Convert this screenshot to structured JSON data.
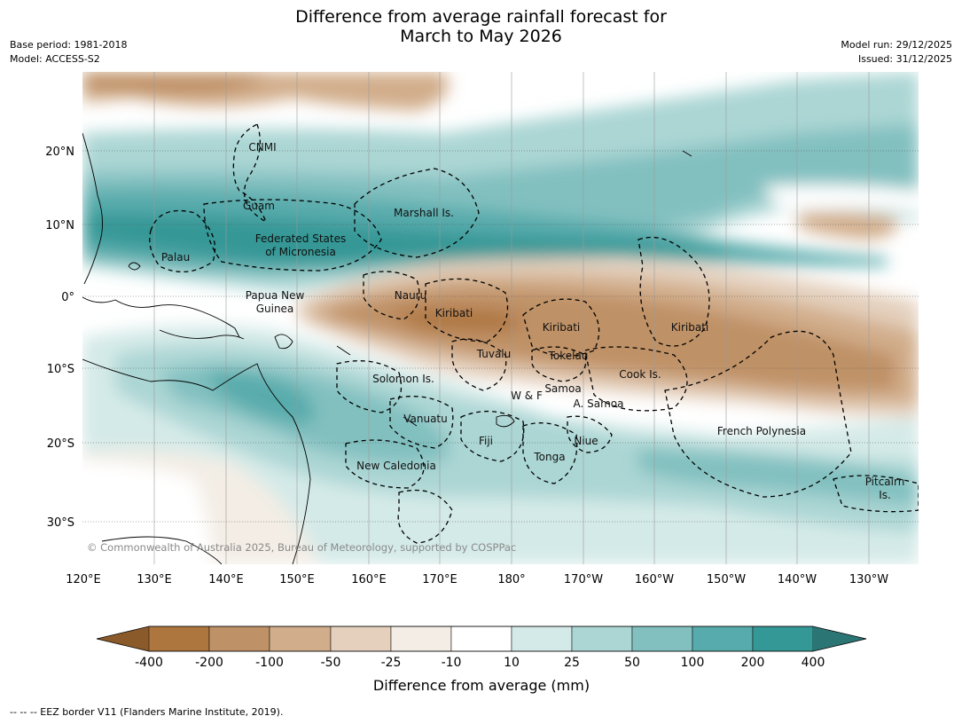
{
  "title_line1": "Difference from average rainfall forecast for",
  "title_line2": "March to May 2026",
  "meta_left": [
    "Base period: 1981-2018",
    "Model: ACCESS-S2"
  ],
  "meta_right": [
    "Model run: 29/12/2025",
    "Issued: 31/12/2025"
  ],
  "lat_labels": [
    "20°N",
    "10°N",
    "0°",
    "10°S",
    "20°S",
    "30°S"
  ],
  "lon_labels": [
    "120°E",
    "130°E",
    "140°E",
    "150°E",
    "160°E",
    "170°E",
    "180°",
    "170°W",
    "160°W",
    "150°W",
    "140°W",
    "130°W"
  ],
  "regions": {
    "cnmi": "CNMI",
    "guam": "Guam",
    "marshall": "Marshall Is.",
    "fsm1": "Federated States",
    "fsm2": "of Micronesia",
    "palau": "Palau",
    "png1": "Papua New",
    "png2": "Guinea",
    "nauru": "Nauru",
    "kiribati_w": "Kiribati",
    "kiribati_c": "Kiribati",
    "kiribati_e": "Kiribati",
    "tuvalu": "Tuvalu",
    "tokelau": "Tokelau",
    "cook": "Cook Is.",
    "solomon": "Solomon Is.",
    "samoa": "Samoa",
    "wf": "W & F",
    "asamoa": "A. Samoa",
    "vanuatu": "Vanuatu",
    "fiji": "Fiji",
    "niue": "Niue",
    "tonga": "Tonga",
    "frenchpoly": "French Polynesia",
    "newcal": "New Caledonia",
    "pitcairn1": "Pitcairn",
    "pitcairn2": "Is."
  },
  "copyright": "© Commonwealth of Australia 2025, Bureau of Meteorology, supported by COSPPac",
  "colorbar": {
    "title": "Difference from average (mm)",
    "ticks": [
      "-400",
      "-200",
      "-100",
      "-50",
      "-25",
      "-10",
      "10",
      "25",
      "50",
      "100",
      "200",
      "400"
    ],
    "colors": [
      "#8b5a2b",
      "#ae763f",
      "#bf9166",
      "#d1ad8b",
      "#e4d0bd",
      "#f3ede5",
      "#ffffff",
      "#d4eae8",
      "#abd6d4",
      "#82c0c0",
      "#58abac",
      "#349896",
      "#2b7574"
    ]
  },
  "footer": "--  --  -- EEZ border V11 (Flanders Marine Institute, 2019)."
}
